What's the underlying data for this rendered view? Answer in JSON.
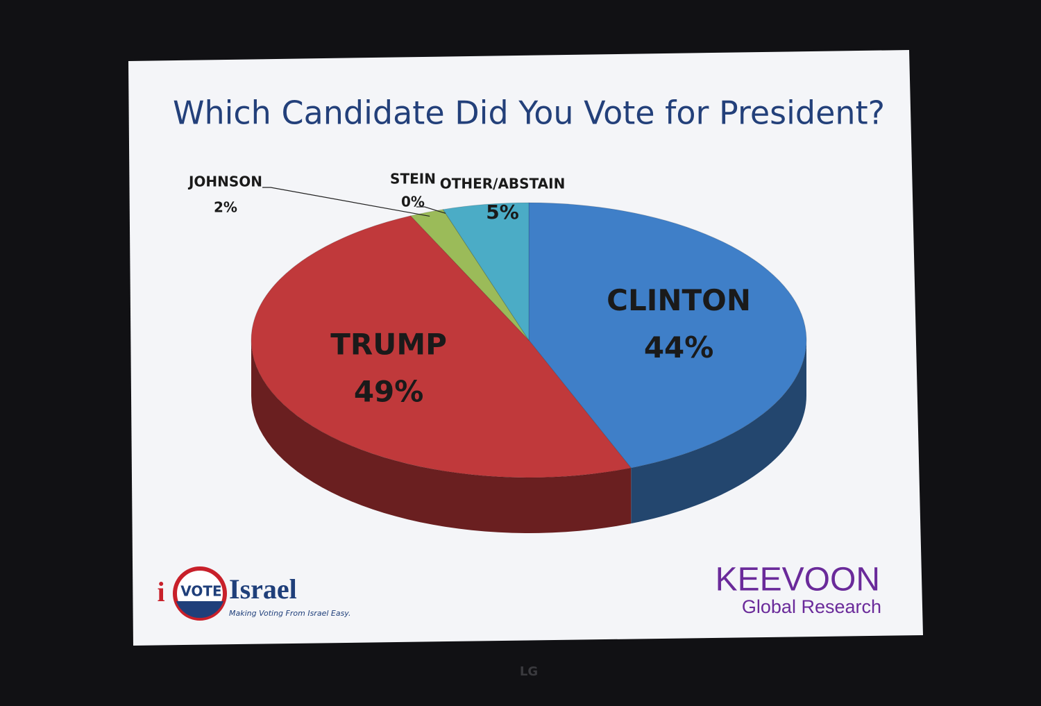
{
  "chart_data": {
    "type": "pie",
    "title": "Which Candidate Did You Vote for President?",
    "categories": [
      "CLINTON",
      "TRUMP",
      "JOHNSON",
      "STEIN",
      "OTHER/ABSTAIN"
    ],
    "values": [
      44,
      49,
      2,
      0,
      5
    ],
    "value_labels": [
      "44%",
      "49%",
      "2%",
      "0%",
      "5%"
    ],
    "colors": [
      "#3f7fc8",
      "#c0393b",
      "#9bbb59",
      "#8064a2",
      "#4bacc6"
    ]
  },
  "logos": {
    "left_i": "i",
    "left_badge": "VOTE",
    "left_name": "Israel",
    "left_tagline": "Making Voting From Israel Easy.",
    "right_name": "KEEVOON",
    "right_sub": "Global Research"
  },
  "monitor_brand": "LG"
}
